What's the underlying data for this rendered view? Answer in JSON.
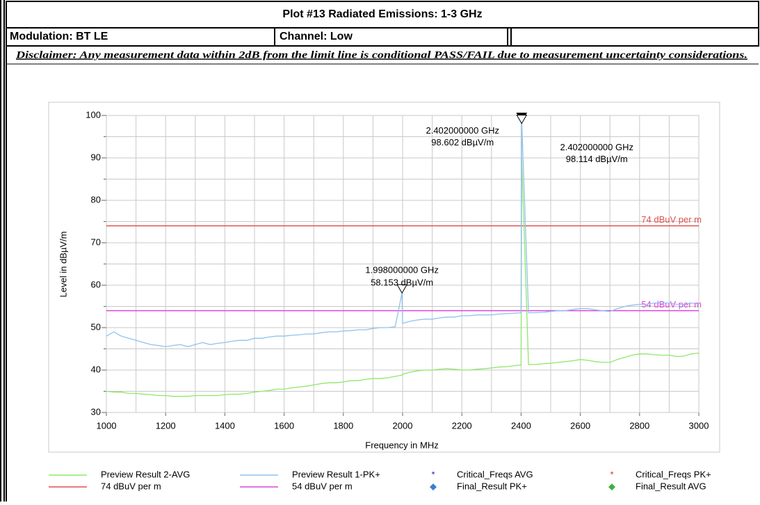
{
  "header": {
    "title": "Plot #13 Radiated Emissions: 1-3 GHz",
    "modulation": "Modulation: BT LE",
    "channel": "Channel: Low",
    "disclaimer": "Disclaimer: Any measurement data within 2dB from the limit line is conditional PASS/FAIL due to measurement uncertainty considerations."
  },
  "chart_data": {
    "type": "line",
    "xlabel": "Frequency in MHz",
    "ylabel": "Level in dBµV/m",
    "xlim": [
      1000,
      3000
    ],
    "ylim": [
      30,
      100
    ],
    "xticks": [
      1000,
      1200,
      1400,
      1600,
      1800,
      2000,
      2200,
      2400,
      2600,
      2800,
      3000
    ],
    "yticks": [
      30,
      40,
      50,
      60,
      70,
      80,
      90,
      100
    ],
    "xgrid_minor": [
      1100,
      1300,
      1500,
      1700,
      1900,
      2100,
      2300,
      2500,
      2700,
      2900
    ],
    "ygrid_minor": [
      35,
      45,
      55,
      65,
      75,
      85,
      95
    ],
    "grid": true,
    "x": [
      1000,
      1025,
      1050,
      1075,
      1100,
      1125,
      1150,
      1175,
      1200,
      1225,
      1250,
      1275,
      1300,
      1325,
      1350,
      1375,
      1400,
      1425,
      1450,
      1475,
      1500,
      1525,
      1550,
      1575,
      1600,
      1625,
      1650,
      1675,
      1700,
      1725,
      1750,
      1775,
      1800,
      1825,
      1850,
      1875,
      1900,
      1925,
      1950,
      1975,
      1998,
      2000,
      2025,
      2050,
      2075,
      2100,
      2125,
      2150,
      2175,
      2200,
      2225,
      2250,
      2275,
      2300,
      2325,
      2350,
      2375,
      2400,
      2402,
      2425,
      2450,
      2475,
      2500,
      2525,
      2550,
      2575,
      2600,
      2625,
      2650,
      2675,
      2700,
      2725,
      2750,
      2775,
      2800,
      2825,
      2850,
      2875,
      2900,
      2925,
      2950,
      2975,
      3000
    ],
    "series": [
      {
        "name": "Preview Result 2-AVG",
        "color": "#8ee86a",
        "values": [
          35,
          34.8,
          34.8,
          34.5,
          34.5,
          34.3,
          34.2,
          34,
          34,
          33.8,
          33.8,
          33.8,
          34,
          34,
          34,
          34,
          34.2,
          34.3,
          34.3,
          34.5,
          34.8,
          35,
          35.2,
          35.5,
          35.5,
          35.8,
          36,
          36.2,
          36.5,
          36.8,
          37,
          37,
          37.2,
          37.5,
          37.5,
          37.8,
          38,
          38,
          38.2,
          38.5,
          38.8,
          39,
          39.5,
          39.8,
          40,
          40,
          40.2,
          40.3,
          40.2,
          40,
          40,
          40.2,
          40.3,
          40.5,
          40.7,
          40.8,
          41,
          41.2,
          90,
          41.3,
          41.3,
          41.5,
          41.6,
          41.8,
          42,
          42.2,
          42.5,
          42.3,
          42,
          41.8,
          41.8,
          42.5,
          43,
          43.5,
          43.8,
          43.8,
          43.6,
          43.5,
          43.5,
          43.2,
          43.3,
          43.8,
          44
        ]
      },
      {
        "name": "Preview Result 1-PK+",
        "color": "#8fc2ee",
        "values": [
          48,
          49,
          48,
          47.5,
          47,
          46.5,
          46,
          45.8,
          45.5,
          45.8,
          46,
          45.5,
          46,
          46.5,
          46,
          46.3,
          46.5,
          46.8,
          47,
          47,
          47.5,
          47.5,
          47.8,
          48,
          48,
          48.2,
          48.3,
          48.5,
          48.5,
          48.8,
          49,
          49,
          49.2,
          49.3,
          49.5,
          49.5,
          49.8,
          50,
          50,
          50.2,
          58.153,
          51,
          51.5,
          51.8,
          52,
          52,
          52.3,
          52.5,
          52.5,
          52.8,
          52.8,
          53,
          53,
          53,
          53.2,
          53.3,
          53.4,
          53.5,
          98.602,
          53.5,
          53.5,
          53.6,
          53.8,
          54,
          54,
          54.3,
          54.5,
          54.5,
          54.2,
          54,
          53.8,
          54.5,
          55,
          55.3,
          55.5,
          55.5,
          55.8,
          55.8,
          55.8,
          55.5,
          55.5,
          55.8,
          55.5
        ]
      }
    ],
    "limits": [
      {
        "name": "74 dBuV per m",
        "value": 74,
        "color": "#e05050"
      },
      {
        "name": "54 dBuV per m",
        "value": 54,
        "color": "#dd44dd"
      }
    ],
    "markers": [
      {
        "x": 2402,
        "y": 98.602,
        "label": [
          "2.402000000 GHz",
          "98.602 dBµV/m"
        ],
        "filled": true
      },
      {
        "x": 2402,
        "y": 98.114,
        "label": [
          "2.402000000 GHz",
          "98.114 dBµV/m"
        ],
        "filled": false
      },
      {
        "x": 1998,
        "y": 58.153,
        "label": [
          "1.998000000 GHz",
          "58.153 dBµV/m"
        ],
        "filled": false
      }
    ],
    "legend_extra": [
      {
        "name": "Critical_Freqs AVG",
        "color": "#2020d0",
        "symbol": "*"
      },
      {
        "name": "Critical_Freqs PK+",
        "color": "#e03030",
        "symbol": "*"
      },
      {
        "name": "Final_Result PK+",
        "color": "#3a7fd0",
        "symbol": "◆"
      },
      {
        "name": "Final_Result AVG",
        "color": "#40b040",
        "symbol": "◆"
      }
    ]
  }
}
